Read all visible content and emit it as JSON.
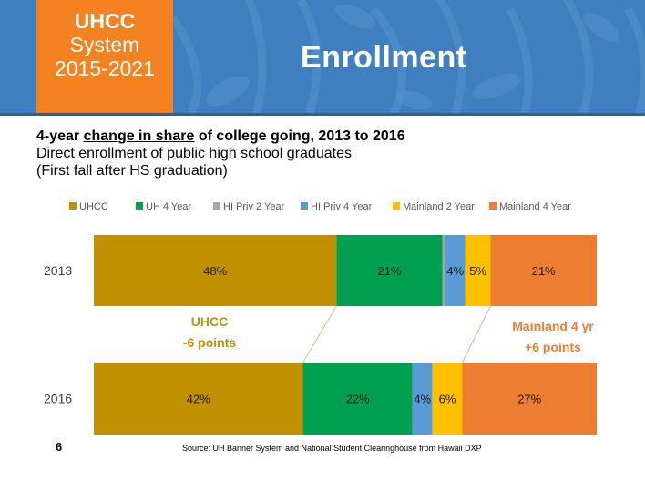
{
  "header": {
    "badge_line1": "UHCC",
    "badge_line2": "System",
    "badge_line3": "2015-2021",
    "title": "Enrollment"
  },
  "subtitle": {
    "line1_pre": "4-year ",
    "line1_underlined": "change in share",
    "line1_post": " of college going, 2013 to 2016",
    "line2": "Direct enrollment of public high school graduates",
    "line3": "(First fall after HS graduation)"
  },
  "chart_data": {
    "type": "bar",
    "orientation": "horizontal",
    "stacked": true,
    "normalized": true,
    "categories": [
      "2013",
      "2016"
    ],
    "series": [
      {
        "name": "UHCC",
        "color": "#c09000",
        "values": [
          48,
          42
        ],
        "labels": [
          "48%",
          "42%"
        ]
      },
      {
        "name": "UH 4 Year",
        "color": "#00a050",
        "values": [
          21,
          22
        ],
        "labels": [
          "21%",
          "22%"
        ]
      },
      {
        "name": "HI Priv 2 Year",
        "color": "#a6a6a6",
        "values": [
          0.5,
          0
        ],
        "labels": [
          "",
          ""
        ]
      },
      {
        "name": "HI Priv 4 Year",
        "color": "#5b9bd5",
        "values": [
          4,
          4
        ],
        "labels": [
          "4%",
          "4%"
        ]
      },
      {
        "name": "Mainland 2 Year",
        "color": "#ffc000",
        "values": [
          5,
          6
        ],
        "labels": [
          "5%",
          "6%"
        ]
      },
      {
        "name": "Mainland 4 Year",
        "color": "#ed7d31",
        "values": [
          21,
          27
        ],
        "labels": [
          "21%",
          "27%"
        ]
      }
    ],
    "legend_position": "top",
    "annotations": [
      {
        "lines": [
          "UHCC",
          "-6 points"
        ],
        "color": "#c09000",
        "series": "UHCC"
      },
      {
        "lines": [
          "Mainland 4 yr",
          "+6 points"
        ],
        "color": "#ed7d31",
        "series": "Mainland 4 Year"
      }
    ],
    "grid": false
  },
  "footer": {
    "page_number": "6",
    "source": "Source: UH Banner System and National Student Clearinghouse from Hawaii DXP"
  }
}
